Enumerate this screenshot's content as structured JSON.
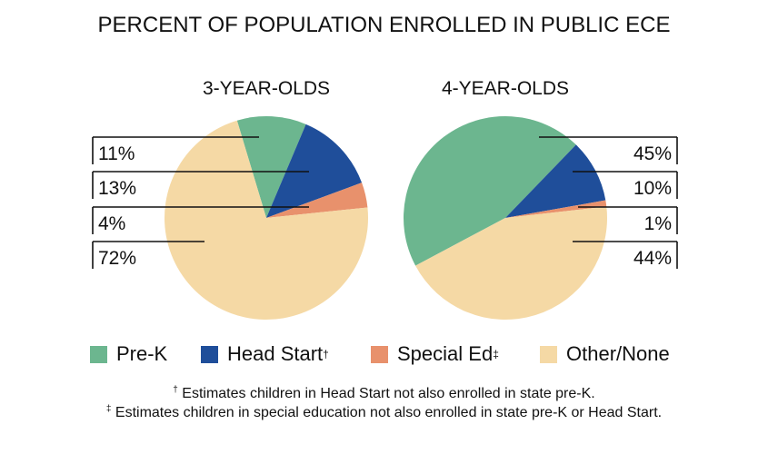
{
  "chart_data": [
    {
      "type": "pie",
      "title": "3-YEAR-OLDS",
      "categories": [
        "Pre-K",
        "Head Start",
        "Special Ed",
        "Other/None"
      ],
      "values": [
        11,
        13,
        4,
        72
      ],
      "labels": [
        "11%",
        "13%",
        "4%",
        "72%"
      ]
    },
    {
      "type": "pie",
      "title": "4-YEAR-OLDS",
      "categories": [
        "Pre-K",
        "Head Start",
        "Special Ed",
        "Other/None"
      ],
      "values": [
        45,
        10,
        1,
        44
      ],
      "labels": [
        "45%",
        "10%",
        "1%",
        "44%"
      ]
    }
  ],
  "title": "PERCENT OF POPULATION ENROLLED IN PUBLIC ECE",
  "legend": [
    {
      "label": "Pre-K",
      "mark": "",
      "color": "#6cb68f"
    },
    {
      "label": "Head Start",
      "mark": "†",
      "color": "#1f4e9a"
    },
    {
      "label": "Special Ed",
      "mark": "‡",
      "color": "#e8916c"
    },
    {
      "label": "Other/None",
      "mark": "",
      "color": "#f5d9a5"
    }
  ],
  "footnotes": [
    {
      "mark": "†",
      "text": " Estimates children in Head Start not also enrolled in state pre-K."
    },
    {
      "mark": "‡",
      "text": " Estimates children in special education not also enrolled in state pre-K or Head Start."
    }
  ]
}
